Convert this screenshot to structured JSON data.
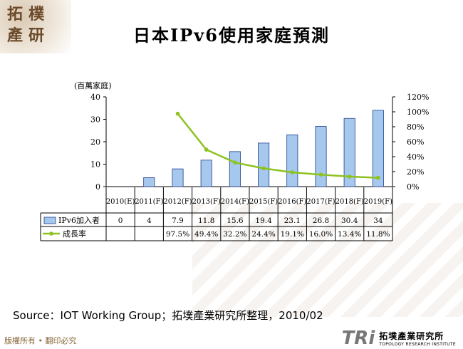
{
  "logo": {
    "line1": "拓",
    "line2": "樸",
    "line3": "產",
    "line4": "研"
  },
  "title": "日本IPv6使用家庭預測",
  "source": "Source：IOT Working Group；拓墣產業研究所整理，2010/02",
  "copyright": "版權所有 • 翻印必究",
  "brand": {
    "mark": "TRi",
    "name_cn": "拓墣產業研究所",
    "name_en": "TOPOLOGY RESEARCH INSTITUTE"
  },
  "chart_data": {
    "type": "bar",
    "unit_label": "(百萬家庭)",
    "categories": [
      "2010(E)",
      "2011(F)",
      "2012(F)",
      "2013(F)",
      "2014(F)",
      "2015(F)",
      "2016(F)",
      "2017(F)",
      "2018(F)",
      "2019(F)"
    ],
    "series": [
      {
        "name": "IPv6加入者",
        "kind": "bar",
        "axis": "left",
        "values": [
          0,
          4,
          7.9,
          11.8,
          15.6,
          19.4,
          23.1,
          26.8,
          30.4,
          34
        ],
        "labels": [
          "0",
          "4",
          "7.9",
          "11.8",
          "15.6",
          "19.4",
          "23.1",
          "26.8",
          "30.4",
          "34"
        ]
      },
      {
        "name": "成長率",
        "kind": "line",
        "axis": "right",
        "values": [
          null,
          null,
          97.5,
          49.4,
          32.2,
          24.4,
          19.1,
          16.0,
          13.4,
          11.8
        ],
        "labels": [
          "",
          "",
          "97.5%",
          "49.4%",
          "32.2%",
          "24.4%",
          "19.1%",
          "16.0%",
          "13.4%",
          "11.8%"
        ]
      }
    ],
    "ylim_left": [
      0,
      40
    ],
    "yticks_left": [
      "0",
      "10",
      "20",
      "30",
      "40"
    ],
    "ylim_right": [
      0,
      120
    ],
    "yticks_right": [
      "0%",
      "20%",
      "40%",
      "60%",
      "80%",
      "100%",
      "120%"
    ],
    "colors": {
      "bar_fill": "#a6c8ec",
      "bar_stroke": "#1f3f8f",
      "line": "#8dc21f"
    }
  }
}
